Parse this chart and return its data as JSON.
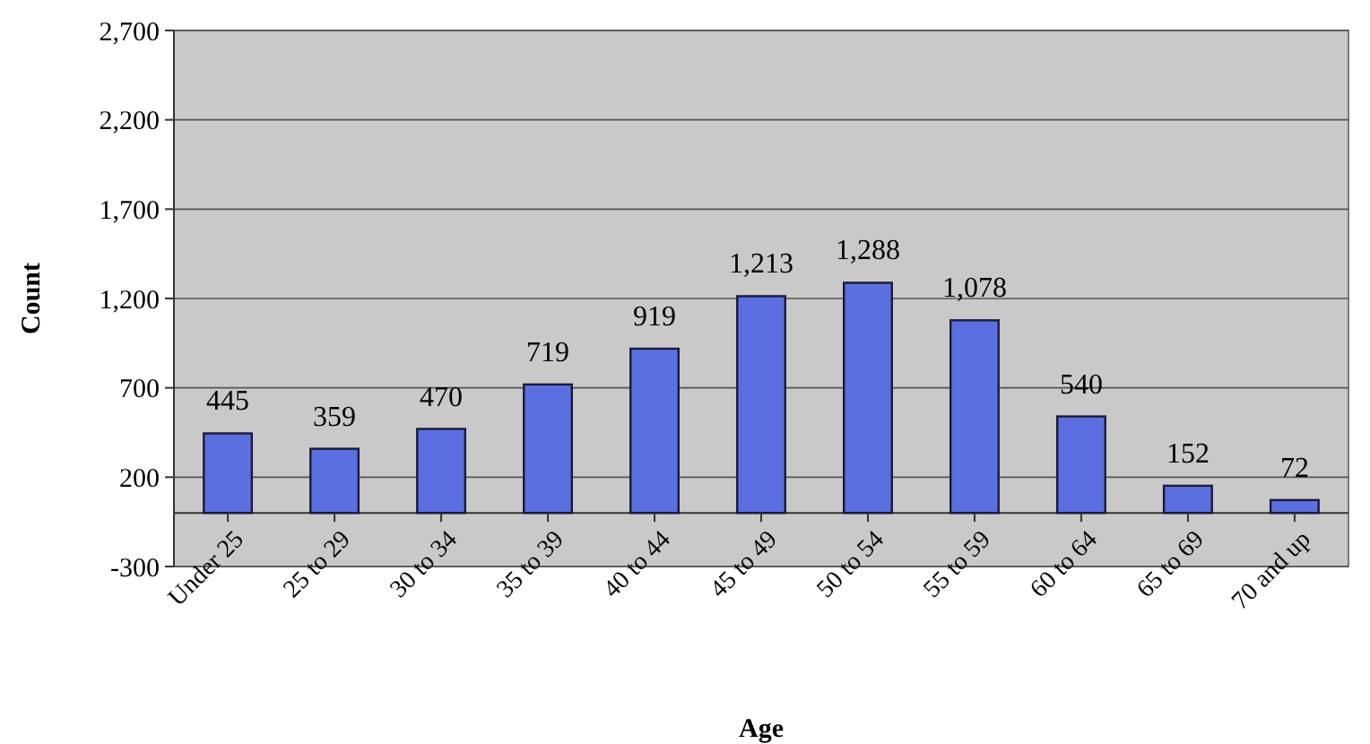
{
  "chart_data": {
    "type": "bar",
    "xlabel": "Age",
    "ylabel": "Count",
    "categories": [
      "Under 25",
      "25 to 29",
      "30 to 34",
      "35 to 39",
      "40 to 44",
      "45 to 49",
      "50 to 54",
      "55 to 59",
      "60 to 64",
      "65 to 69",
      "70 and up"
    ],
    "values": [
      445,
      359,
      470,
      719,
      919,
      1213,
      1288,
      1078,
      540,
      152,
      72
    ],
    "value_labels": [
      "445",
      "359",
      "470",
      "719",
      "919",
      "1,213",
      "1,288",
      "1,078",
      "540",
      "152",
      "72"
    ],
    "color": "#5b6fe0",
    "ylim": [
      -300,
      2700
    ],
    "yticks": [
      -300,
      200,
      700,
      {
        "value": 1200,
        "label": "1,200"
      },
      {
        "value": 1700,
        "label": "1,700"
      },
      {
        "value": 2200,
        "label": "2,200"
      },
      {
        "value": 2700,
        "label": "2,700"
      }
    ],
    "grid": "y"
  }
}
